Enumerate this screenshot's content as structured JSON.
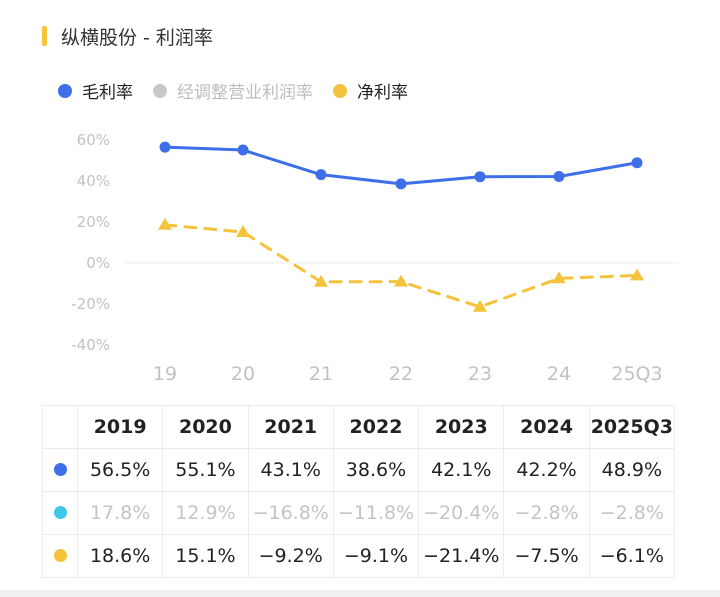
{
  "title": "纵横股份 - 利润率",
  "colors": {
    "gross": "#3f6fe8",
    "adjusted": "#c8c8c8",
    "net": "#f5c23c",
    "adjusted_table": "#3fc8ec",
    "title_bar": "#f5c23c"
  },
  "legend": [
    {
      "label": "毛利率",
      "color": "#3f6fe8",
      "muted": false
    },
    {
      "label": "经调整营业利润率",
      "color": "#c8c8c8",
      "muted": true
    },
    {
      "label": "净利率",
      "color": "#f5c23c",
      "muted": false
    }
  ],
  "chart_data": {
    "type": "line",
    "categories": [
      "19",
      "20",
      "21",
      "22",
      "23",
      "24",
      "25Q3"
    ],
    "series": [
      {
        "name": "毛利率",
        "values": [
          56.5,
          55.1,
          43.1,
          38.6,
          42.1,
          42.2,
          48.9
        ],
        "color": "#3f6fe8",
        "style": "solid",
        "marker": "circle"
      },
      {
        "name": "净利率",
        "values": [
          18.6,
          15.1,
          -9.2,
          -9.1,
          -21.4,
          -7.5,
          -6.1
        ],
        "color": "#f5c23c",
        "style": "dashed",
        "marker": "triangle"
      }
    ],
    "ylim": [
      -40,
      60
    ],
    "yticks": [
      "60%",
      "40%",
      "20%",
      "0%",
      "-20%",
      "-40%"
    ],
    "ytick_values": [
      60,
      40,
      20,
      0,
      -20,
      -40
    ],
    "grid": "zero-line-only"
  },
  "table": {
    "headers": [
      "2019",
      "2020",
      "2021",
      "2022",
      "2023",
      "2024",
      "2025Q3"
    ],
    "rows": [
      {
        "color": "#3f6fe8",
        "muted": false,
        "cells": [
          "56.5%",
          "55.1%",
          "43.1%",
          "38.6%",
          "42.1%",
          "42.2%",
          "48.9%"
        ]
      },
      {
        "color": "#3fc8ec",
        "muted": true,
        "cells": [
          "17.8%",
          "12.9%",
          "−16.8%",
          "−11.8%",
          "−20.4%",
          "−2.8%",
          "−2.8%"
        ]
      },
      {
        "color": "#f5c23c",
        "muted": false,
        "cells": [
          "18.6%",
          "15.1%",
          "−9.2%",
          "−9.1%",
          "−21.4%",
          "−7.5%",
          "−6.1%"
        ]
      }
    ]
  }
}
